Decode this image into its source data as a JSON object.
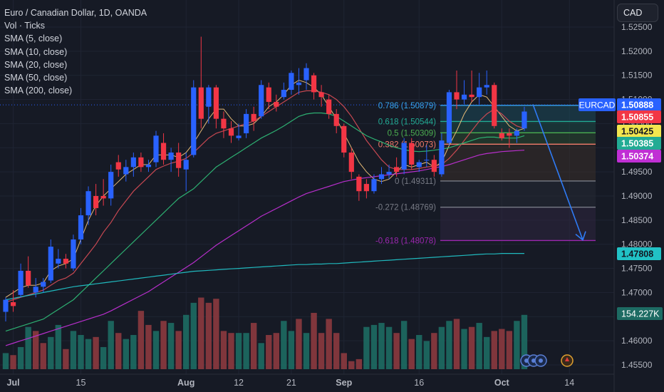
{
  "symbol_title": "Euro / Canadian Dollar, 1D, OANDA",
  "indicators": [
    "Vol · Ticks",
    "SMA (5, close)",
    "SMA (10, close)",
    "SMA (20, close)",
    "SMA (50, close)",
    "SMA (200, close)"
  ],
  "currency_button": "CAD",
  "colors": {
    "background": "#161a25",
    "up": "#2962ff",
    "down": "#f23645",
    "sma5": "#f0c27a",
    "sma10": "#d14b54",
    "sma20": "#2eb876",
    "sma50": "#c02fd4",
    "sma200": "#21c2c6"
  },
  "chart_data": {
    "type": "candlestick",
    "x_ticks": [
      {
        "label": "Jul",
        "index": 1
      },
      {
        "label": "15",
        "index": 10
      },
      {
        "label": "Aug",
        "index": 24
      },
      {
        "label": "12",
        "index": 31
      },
      {
        "label": "21",
        "index": 38
      },
      {
        "label": "Sep",
        "index": 45
      },
      {
        "label": "16",
        "index": 55
      },
      {
        "label": "Oct",
        "index": 66
      },
      {
        "label": "14",
        "index": 75
      }
    ],
    "ylim": [
      1.4535,
      1.5265
    ],
    "y_ticks": [
      "1.52500",
      "1.52000",
      "1.51500",
      "1.51000",
      "1.50500",
      "1.50000",
      "1.49500",
      "1.49000",
      "1.48500",
      "1.48000",
      "1.47500",
      "1.47000",
      "1.46500",
      "1.46000",
      "1.45500"
    ],
    "candles": [
      {
        "o": 1.466,
        "h": 1.469,
        "l": 1.464,
        "c": 1.4685
      },
      {
        "o": 1.468,
        "h": 1.4705,
        "l": 1.466,
        "c": 1.4672
      },
      {
        "o": 1.4695,
        "h": 1.476,
        "l": 1.469,
        "c": 1.4745
      },
      {
        "o": 1.4745,
        "h": 1.4775,
        "l": 1.471,
        "c": 1.4715
      },
      {
        "o": 1.47,
        "h": 1.473,
        "l": 1.469,
        "c": 1.4712
      },
      {
        "o": 1.4712,
        "h": 1.473,
        "l": 1.47,
        "c": 1.4722
      },
      {
        "o": 1.4725,
        "h": 1.481,
        "l": 1.472,
        "c": 1.4795
      },
      {
        "o": 1.476,
        "h": 1.479,
        "l": 1.475,
        "c": 1.477
      },
      {
        "o": 1.477,
        "h": 1.478,
        "l": 1.475,
        "c": 1.476
      },
      {
        "o": 1.475,
        "h": 1.482,
        "l": 1.4745,
        "c": 1.481
      },
      {
        "o": 1.481,
        "h": 1.4875,
        "l": 1.48,
        "c": 1.486
      },
      {
        "o": 1.486,
        "h": 1.492,
        "l": 1.484,
        "c": 1.491
      },
      {
        "o": 1.49,
        "h": 1.4925,
        "l": 1.486,
        "c": 1.4875
      },
      {
        "o": 1.49,
        "h": 1.4935,
        "l": 1.488,
        "c": 1.4895
      },
      {
        "o": 1.4895,
        "h": 1.4965,
        "l": 1.488,
        "c": 1.495
      },
      {
        "o": 1.497,
        "h": 1.4985,
        "l": 1.494,
        "c": 1.4955
      },
      {
        "o": 1.4945,
        "h": 1.4975,
        "l": 1.493,
        "c": 1.496
      },
      {
        "o": 1.496,
        "h": 1.499,
        "l": 1.494,
        "c": 1.498
      },
      {
        "o": 1.498,
        "h": 1.499,
        "l": 1.495,
        "c": 1.496
      },
      {
        "o": 1.496,
        "h": 1.4975,
        "l": 1.495,
        "c": 1.4965
      },
      {
        "o": 1.497,
        "h": 1.5035,
        "l": 1.496,
        "c": 1.5025
      },
      {
        "o": 1.501,
        "h": 1.503,
        "l": 1.4965,
        "c": 1.4975
      },
      {
        "o": 1.4975,
        "h": 1.5,
        "l": 1.495,
        "c": 1.499
      },
      {
        "o": 1.499,
        "h": 1.501,
        "l": 1.494,
        "c": 1.4958
      },
      {
        "o": 1.4955,
        "h": 1.499,
        "l": 1.491,
        "c": 1.4975
      },
      {
        "o": 1.4985,
        "h": 1.514,
        "l": 1.498,
        "c": 1.5125
      },
      {
        "o": 1.5125,
        "h": 1.523,
        "l": 1.504,
        "c": 1.506
      },
      {
        "o": 1.5085,
        "h": 1.513,
        "l": 1.505,
        "c": 1.5125
      },
      {
        "o": 1.5125,
        "h": 1.513,
        "l": 1.504,
        "c": 1.506
      },
      {
        "o": 1.506,
        "h": 1.5075,
        "l": 1.502,
        "c": 1.504
      },
      {
        "o": 1.504,
        "h": 1.5055,
        "l": 1.501,
        "c": 1.5025
      },
      {
        "o": 1.502,
        "h": 1.505,
        "l": 1.5015,
        "c": 1.5025
      },
      {
        "o": 1.503,
        "h": 1.508,
        "l": 1.502,
        "c": 1.507
      },
      {
        "o": 1.507,
        "h": 1.5085,
        "l": 1.5035,
        "c": 1.5055
      },
      {
        "o": 1.5065,
        "h": 1.514,
        "l": 1.506,
        "c": 1.513
      },
      {
        "o": 1.5125,
        "h": 1.5135,
        "l": 1.508,
        "c": 1.5095
      },
      {
        "o": 1.5095,
        "h": 1.511,
        "l": 1.5075,
        "c": 1.5085
      },
      {
        "o": 1.5105,
        "h": 1.5135,
        "l": 1.51,
        "c": 1.512
      },
      {
        "o": 1.512,
        "h": 1.516,
        "l": 1.511,
        "c": 1.5155
      },
      {
        "o": 1.513,
        "h": 1.5165,
        "l": 1.511,
        "c": 1.5135
      },
      {
        "o": 1.514,
        "h": 1.5175,
        "l": 1.512,
        "c": 1.5165
      },
      {
        "o": 1.515,
        "h": 1.5155,
        "l": 1.51,
        "c": 1.5115
      },
      {
        "o": 1.5115,
        "h": 1.513,
        "l": 1.5085,
        "c": 1.5105
      },
      {
        "o": 1.51,
        "h": 1.511,
        "l": 1.506,
        "c": 1.507
      },
      {
        "o": 1.507,
        "h": 1.508,
        "l": 1.503,
        "c": 1.5045
      },
      {
        "o": 1.5045,
        "h": 1.505,
        "l": 1.498,
        "c": 1.499
      },
      {
        "o": 1.499,
        "h": 1.5,
        "l": 1.4935,
        "c": 1.495
      },
      {
        "o": 1.494,
        "h": 1.4945,
        "l": 1.489,
        "c": 1.491
      },
      {
        "o": 1.4925,
        "h": 1.4935,
        "l": 1.4895,
        "c": 1.491
      },
      {
        "o": 1.491,
        "h": 1.4945,
        "l": 1.4905,
        "c": 1.4935
      },
      {
        "o": 1.4935,
        "h": 1.496,
        "l": 1.4925,
        "c": 1.4945
      },
      {
        "o": 1.4945,
        "h": 1.4965,
        "l": 1.4935,
        "c": 1.495
      },
      {
        "o": 1.496,
        "h": 1.498,
        "l": 1.494,
        "c": 1.495
      },
      {
        "o": 1.4955,
        "h": 1.502,
        "l": 1.4945,
        "c": 1.501
      },
      {
        "o": 1.501,
        "h": 1.502,
        "l": 1.4955,
        "c": 1.4965
      },
      {
        "o": 1.496,
        "h": 1.4975,
        "l": 1.495,
        "c": 1.497
      },
      {
        "o": 1.4975,
        "h": 1.5005,
        "l": 1.496,
        "c": 1.4975
      },
      {
        "o": 1.4975,
        "h": 1.4985,
        "l": 1.494,
        "c": 1.495
      },
      {
        "o": 1.4945,
        "h": 1.503,
        "l": 1.494,
        "c": 1.5015
      },
      {
        "o": 1.501,
        "h": 1.512,
        "l": 1.5005,
        "c": 1.5115
      },
      {
        "o": 1.5115,
        "h": 1.516,
        "l": 1.508,
        "c": 1.51
      },
      {
        "o": 1.51,
        "h": 1.514,
        "l": 1.509,
        "c": 1.511
      },
      {
        "o": 1.511,
        "h": 1.516,
        "l": 1.5095,
        "c": 1.5105
      },
      {
        "o": 1.5105,
        "h": 1.5155,
        "l": 1.509,
        "c": 1.5125
      },
      {
        "o": 1.5125,
        "h": 1.516,
        "l": 1.511,
        "c": 1.513
      },
      {
        "o": 1.513,
        "h": 1.5135,
        "l": 1.504,
        "c": 1.5045
      },
      {
        "o": 1.503,
        "h": 1.504,
        "l": 1.5015,
        "c": 1.502
      },
      {
        "o": 1.503,
        "h": 1.504,
        "l": 1.5,
        "c": 1.5025
      },
      {
        "o": 1.5025,
        "h": 1.504,
        "l": 1.501,
        "c": 1.5035
      },
      {
        "o": 1.504,
        "h": 1.5085,
        "l": 1.5035,
        "c": 1.5075
      }
    ],
    "volume_ylim": [
      0,
      310
    ],
    "volumes": [
      40,
      35,
      55,
      105,
      95,
      65,
      80,
      110,
      50,
      95,
      85,
      75,
      80,
      55,
      120,
      90,
      75,
      85,
      145,
      110,
      95,
      120,
      115,
      95,
      135,
      165,
      178,
      165,
      175,
      95,
      90,
      90,
      90,
      115,
      65,
      85,
      90,
      120,
      95,
      125,
      90,
      140,
      90,
      125,
      90,
      40,
      20,
      25,
      105,
      110,
      115,
      105,
      90,
      120,
      75,
      85,
      70,
      90,
      105,
      120,
      125,
      100,
      105,
      115,
      80,
      95,
      100,
      95,
      120,
      135
    ],
    "volume_up": [
      true,
      false,
      true,
      true,
      false,
      false,
      true,
      true,
      false,
      true,
      true,
      true,
      false,
      true,
      true,
      false,
      true,
      true,
      false,
      false,
      true,
      false,
      true,
      false,
      true,
      true,
      false,
      false,
      false,
      false,
      false,
      true,
      true,
      false,
      true,
      false,
      false,
      true,
      true,
      false,
      true,
      false,
      false,
      false,
      false,
      false,
      false,
      false,
      true,
      true,
      true,
      true,
      false,
      true,
      false,
      true,
      true,
      false,
      true,
      true,
      false,
      true,
      false,
      true,
      true,
      false,
      false,
      false,
      true,
      true
    ],
    "series": [
      {
        "name": "SMA (5, close)",
        "values": [
          1.469,
          1.47,
          1.471,
          1.4715,
          1.4715,
          1.472,
          1.4745,
          1.4755,
          1.476,
          1.477,
          1.481,
          1.485,
          1.488,
          1.49,
          1.4915,
          1.493,
          1.4945,
          1.4955,
          1.4965,
          1.4965,
          1.4985,
          1.4985,
          1.4985,
          1.498,
          1.499,
          1.501,
          1.5035,
          1.506,
          1.508,
          1.508,
          1.506,
          1.5045,
          1.5045,
          1.505,
          1.5065,
          1.5085,
          1.5095,
          1.511,
          1.513,
          1.514,
          1.5135,
          1.5125,
          1.511,
          1.5085,
          1.506,
          1.503,
          1.5,
          1.497,
          1.495,
          1.4935,
          1.493,
          1.4935,
          1.495,
          1.4965,
          1.496,
          1.4965,
          1.497,
          1.496,
          1.497,
          1.5005,
          1.5035,
          1.507,
          1.5095,
          1.511,
          1.5105,
          1.5085,
          1.5065,
          1.5045,
          1.5035,
          1.504
        ]
      },
      {
        "name": "SMA (10, close)",
        "values": [
          1.468,
          1.4685,
          1.469,
          1.4695,
          1.47,
          1.4705,
          1.4715,
          1.4725,
          1.473,
          1.474,
          1.476,
          1.478,
          1.48,
          1.4825,
          1.4845,
          1.487,
          1.489,
          1.491,
          1.4925,
          1.494,
          1.4955,
          1.4962,
          1.4968,
          1.4972,
          1.4978,
          1.499,
          1.5005,
          1.502,
          1.503,
          1.5035,
          1.504,
          1.5045,
          1.505,
          1.5055,
          1.5065,
          1.5075,
          1.5085,
          1.5095,
          1.5105,
          1.5115,
          1.5118,
          1.5118,
          1.5115,
          1.511,
          1.51,
          1.5085,
          1.5065,
          1.504,
          1.5015,
          1.4995,
          1.4975,
          1.496,
          1.4955,
          1.4955,
          1.4955,
          1.4957,
          1.496,
          1.4962,
          1.4965,
          1.4978,
          1.4995,
          1.5015,
          1.5035,
          1.5055,
          1.507,
          1.508,
          1.507,
          1.5055,
          1.5045,
          1.504
        ]
      },
      {
        "name": "SMA (20, close)",
        "values": [
          1.462,
          1.4625,
          1.463,
          1.4635,
          1.464,
          1.4645,
          1.4655,
          1.4665,
          1.4675,
          1.4685,
          1.47,
          1.4715,
          1.473,
          1.4745,
          1.476,
          1.4775,
          1.479,
          1.4805,
          1.482,
          1.4835,
          1.485,
          1.4865,
          1.488,
          1.4895,
          1.4905,
          1.4915,
          1.493,
          1.4945,
          1.496,
          1.497,
          1.498,
          1.499,
          1.5,
          1.501,
          1.502,
          1.5028,
          1.5036,
          1.5045,
          1.5055,
          1.5065,
          1.507,
          1.5072,
          1.5072,
          1.507,
          1.5065,
          1.5055,
          1.5045,
          1.5035,
          1.5025,
          1.5018,
          1.5012,
          1.5005,
          1.5,
          1.4996,
          1.4993,
          1.4992,
          1.4993,
          1.4995,
          1.4997,
          1.5,
          1.5005,
          1.501,
          1.5015,
          1.502,
          1.5022,
          1.5022,
          1.502,
          1.502,
          1.502,
          1.5025
        ]
      },
      {
        "name": "SMA (50, close)",
        "values": [
          1.459,
          1.4595,
          1.46,
          1.4605,
          1.461,
          1.4615,
          1.462,
          1.4625,
          1.463,
          1.4635,
          1.464,
          1.4645,
          1.465,
          1.4655,
          1.4662,
          1.467,
          1.4678,
          1.4686,
          1.4694,
          1.4702,
          1.4712,
          1.4722,
          1.4732,
          1.4742,
          1.4752,
          1.4762,
          1.4774,
          1.4786,
          1.4798,
          1.4808,
          1.4818,
          1.4828,
          1.4838,
          1.4848,
          1.4858,
          1.4866,
          1.4874,
          1.4882,
          1.489,
          1.4898,
          1.4905,
          1.491,
          1.4915,
          1.492,
          1.4925,
          1.493,
          1.4933,
          1.4936,
          1.4938,
          1.494,
          1.4942,
          1.4944,
          1.4946,
          1.4948,
          1.495,
          1.4952,
          1.4955,
          1.4958,
          1.4961,
          1.4965,
          1.497,
          1.4975,
          1.498,
          1.4985,
          1.4988,
          1.499,
          1.4992,
          1.4993,
          1.4994,
          1.4995
        ]
      },
      {
        "name": "SMA (200, close)",
        "values": [
          1.4685,
          1.4688,
          1.4691,
          1.4694,
          1.4697,
          1.47,
          1.4703,
          1.4706,
          1.4709,
          1.4712,
          1.4714,
          1.4716,
          1.4718,
          1.472,
          1.4722,
          1.4724,
          1.4726,
          1.4728,
          1.473,
          1.4732,
          1.4734,
          1.4736,
          1.4738,
          1.474,
          1.4742,
          1.4744,
          1.4745,
          1.4746,
          1.4747,
          1.4748,
          1.4749,
          1.475,
          1.4751,
          1.4752,
          1.4753,
          1.4754,
          1.4755,
          1.4756,
          1.4757,
          1.4758,
          1.4758,
          1.4759,
          1.4759,
          1.476,
          1.476,
          1.4761,
          1.4762,
          1.4763,
          1.4764,
          1.4765,
          1.4766,
          1.4767,
          1.4768,
          1.4769,
          1.477,
          1.4771,
          1.4772,
          1.4773,
          1.4774,
          1.4775,
          1.4776,
          1.4777,
          1.4778,
          1.4779,
          1.478,
          1.478,
          1.4781,
          1.4781,
          1.4781,
          1.4781
        ]
      }
    ],
    "fib_levels": [
      {
        "label": "0.786 (1.50879)",
        "value": 1.50879,
        "color": "#37a6ef"
      },
      {
        "label": "0.618 (1.50544)",
        "value": 1.50544,
        "color": "#22ab94"
      },
      {
        "label": "0.5 (1.50309)",
        "value": 1.50309,
        "color": "#4caf50"
      },
      {
        "label": "0.382 (1.50073)",
        "value": 1.50073,
        "color": "#f57c6b"
      },
      {
        "label": "0 (1.49311)",
        "value": 1.49311,
        "color": "#787b86"
      },
      {
        "label": "-0.272 (1.48769)",
        "value": 1.48769,
        "color": "#787b86"
      },
      {
        "label": "-0.618 (1.48078)",
        "value": 1.48078,
        "color": "#9c27b0"
      }
    ],
    "price_tags": [
      {
        "text": "EURCAD",
        "value": 1.50888,
        "bg": "#2962ff",
        "fg": "#ffffff",
        "kind": "symbol"
      },
      {
        "text": "1.50888",
        "value": 1.50888,
        "bg": "#2962ff",
        "fg": "#ffffff"
      },
      {
        "text": "1.50855",
        "value": 1.50855,
        "bg": "#f23645",
        "fg": "#ffffff"
      },
      {
        "text": "1.50425",
        "value": 1.50425,
        "bg": "#f2e64f",
        "fg": "#131722"
      },
      {
        "text": "1.50385",
        "value": 1.50385,
        "bg": "#22ab94",
        "fg": "#ffffff"
      },
      {
        "text": "1.50374",
        "value": 1.50374,
        "bg": "#c02fd4",
        "fg": "#ffffff"
      },
      {
        "text": "1.47808",
        "value": 1.47808,
        "bg": "#21c2c6",
        "fg": "#131722"
      }
    ],
    "volume_tag": "154.227K"
  }
}
